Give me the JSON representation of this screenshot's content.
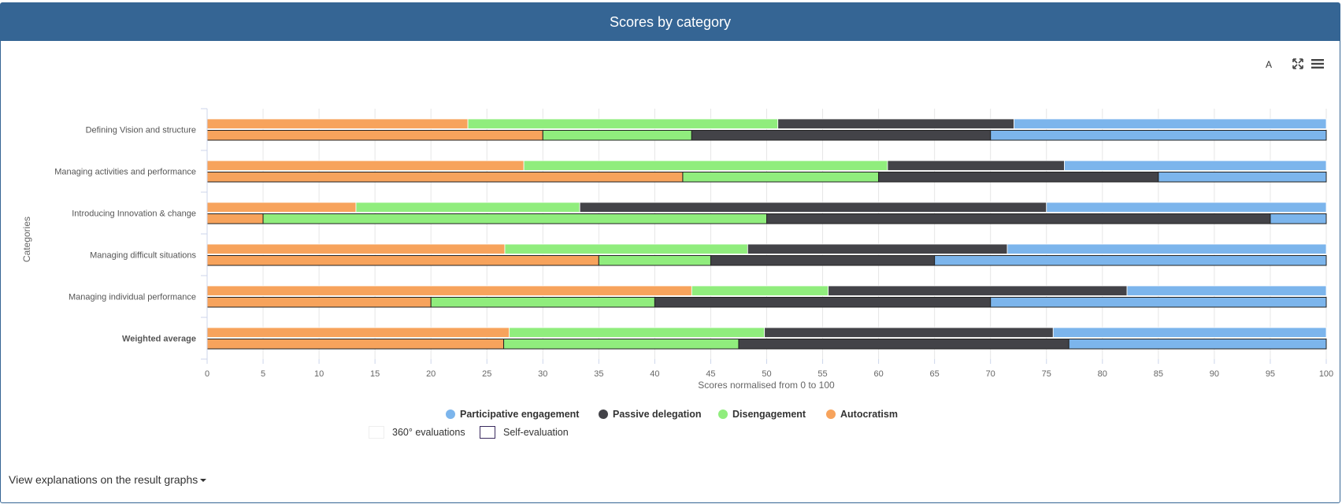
{
  "header": {
    "title": "Scores by category"
  },
  "toolbar": {
    "a_label": "A",
    "fullscreen_icon": "fullscreen-icon",
    "menu_icon": "menu-icon"
  },
  "chart_data": {
    "type": "bar",
    "orientation": "horizontal",
    "stacking": "stacked",
    "ylabel": "Categories",
    "xlabel": "Scores normalised from 0 to 100",
    "xlim": [
      0,
      100
    ],
    "xticks": [
      "0",
      "5",
      "10",
      "15",
      "20",
      "25",
      "30",
      "35",
      "40",
      "45",
      "50",
      "55",
      "60",
      "65",
      "70",
      "75",
      "80",
      "85",
      "90",
      "95",
      "100"
    ],
    "categories": [
      "Defining Vision and structure",
      "Managing activities and performance",
      "Introducing Innovation & change",
      "Managing difficult situations",
      "Managing individual performance",
      "Weighted average"
    ],
    "bold_categories": [
      "Weighted average"
    ],
    "series_order": [
      "Autocratism",
      "Disengagement",
      "Passive delegation",
      "Participative engagement"
    ],
    "colors": {
      "Participative engagement": "#7cb5ec",
      "Passive delegation": "#434348",
      "Disengagement": "#90ed7d",
      "Autocratism": "#f7a35c"
    },
    "stacks": [
      {
        "name": "360° evaluations",
        "series": [
          {
            "name": "Autocratism",
            "values": [
              23.3,
              28.3,
              13.3,
              26.6,
              43.3,
              27
            ]
          },
          {
            "name": "Disengagement",
            "values": [
              27.7,
              32.5,
              20,
              21.7,
              12.2,
              22.8
            ]
          },
          {
            "name": "Passive delegation",
            "values": [
              21.1,
              15.8,
              41.7,
              23.2,
              26.7,
              25.8
            ]
          },
          {
            "name": "Participative engagement",
            "values": [
              27.9,
              23.4,
              25,
              28.5,
              17.8,
              24.4
            ]
          }
        ]
      },
      {
        "name": "Self-evaluation",
        "series": [
          {
            "name": "Autocratism",
            "values": [
              30,
              42.5,
              5,
              35,
              20,
              26.5
            ]
          },
          {
            "name": "Disengagement",
            "values": [
              13.3,
              17.5,
              45,
              10,
              20,
              21
            ]
          },
          {
            "name": "Passive delegation",
            "values": [
              26.7,
              25,
              45,
              20,
              30,
              29.5
            ]
          },
          {
            "name": "Participative engagement",
            "values": [
              30,
              15,
              5,
              35,
              30,
              23
            ]
          }
        ]
      }
    ],
    "legend": [
      "Participative engagement",
      "Passive delegation",
      "Disengagement",
      "Autocratism"
    ],
    "stack_legend": [
      "360° evaluations",
      "Self-evaluation"
    ]
  },
  "footer": {
    "explain_label": "View explanations on the result graphs"
  }
}
